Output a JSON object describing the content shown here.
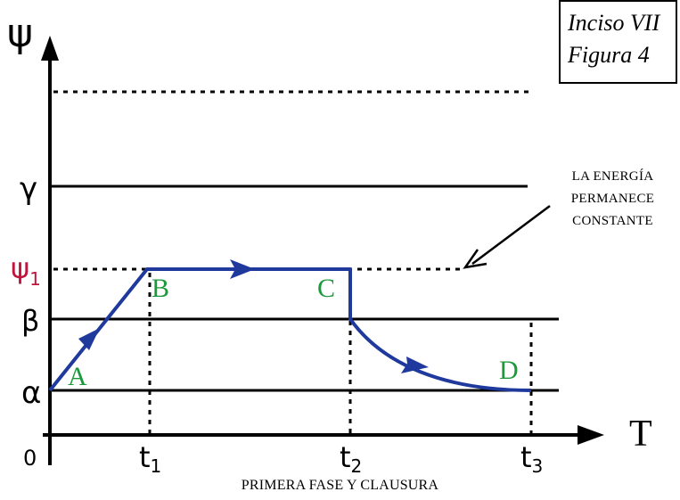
{
  "figure": {
    "box_line1": "Inciso VII",
    "box_line2": "Figura 4",
    "caption": "PRIMERA FASE Y CLAUSURA"
  },
  "axes": {
    "y_symbol": "ψ",
    "x_symbol": "T",
    "origin": "0"
  },
  "levels": {
    "alpha": "α",
    "beta": "β",
    "psi1_base": "ψ",
    "psi1_sub": "1",
    "gamma": "γ"
  },
  "times": {
    "t1_base": "t",
    "t1_sub": "1",
    "t2_base": "t",
    "t2_sub": "2",
    "t3_base": "t",
    "t3_sub": "3"
  },
  "points": {
    "a": "A",
    "b": "B",
    "c": "C",
    "d": "D"
  },
  "annotation": {
    "line1": "LA ENERGÍA",
    "line2": "PERMANECE",
    "line3": "CONSTANTE"
  },
  "colors": {
    "path": "#1f3a9c",
    "psi1_label": "#c0143c",
    "point_labels": "#1a9a3a",
    "lines": "#000000"
  }
}
